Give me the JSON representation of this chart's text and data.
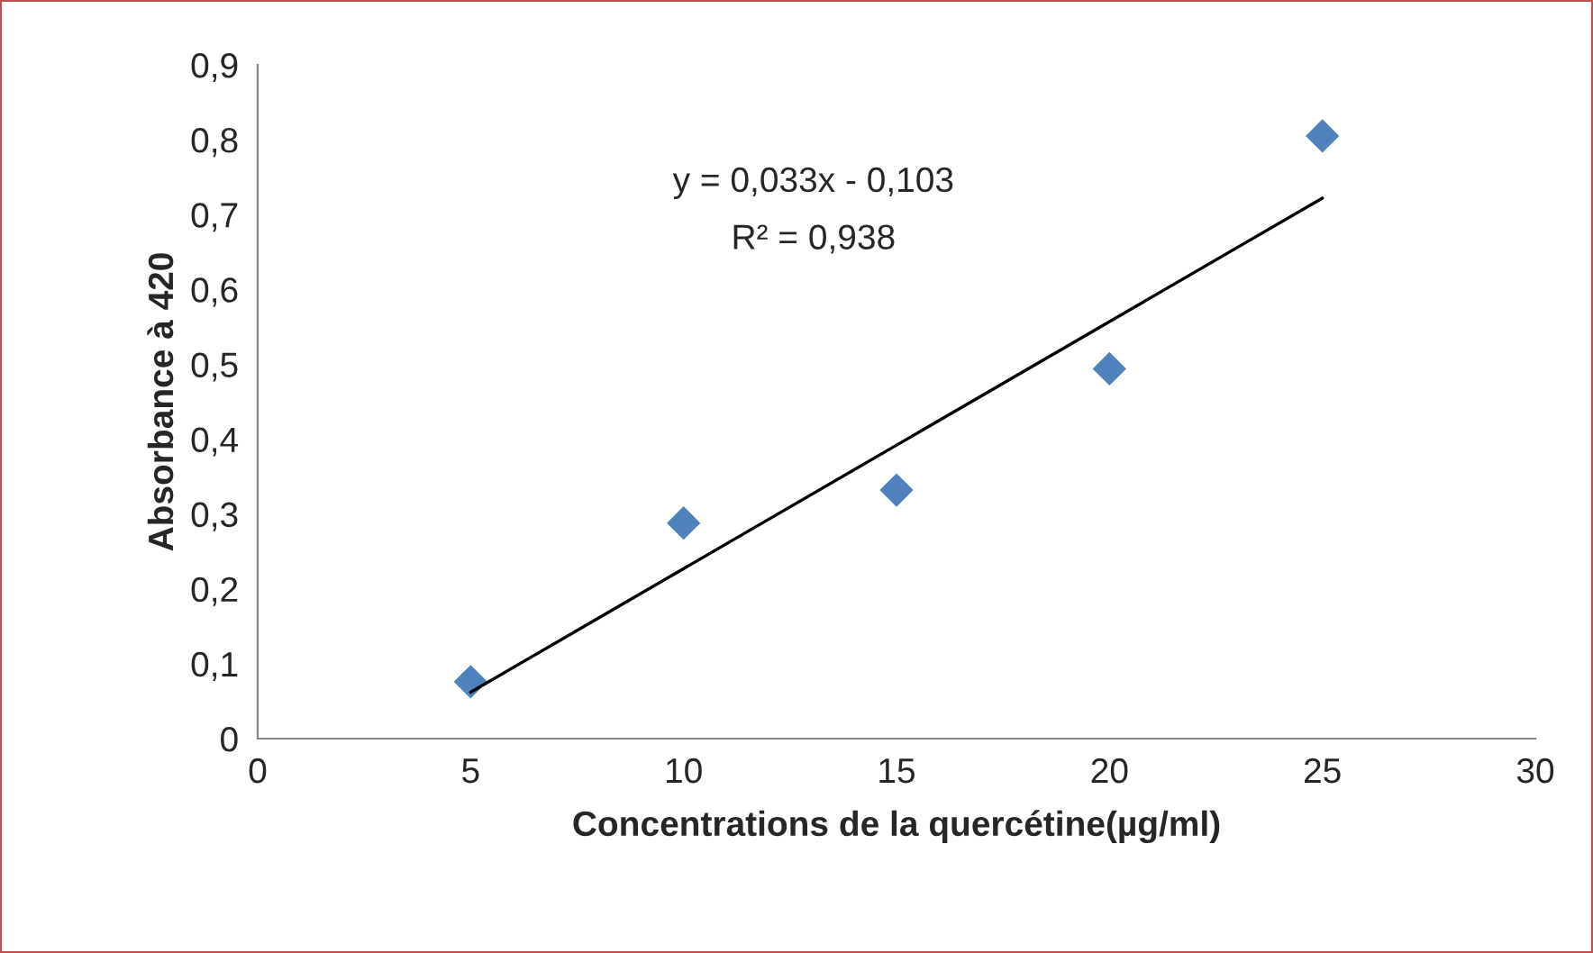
{
  "chart_data": {
    "type": "scatter",
    "xlabel": "Concentrations de la quercétine(µg/ml)",
    "ylabel": "Absorbance à 420",
    "x": [
      5,
      10,
      15,
      20,
      25
    ],
    "series": [
      {
        "color": "#4f81bd",
        "marker": "diamond",
        "values": [
          0.076,
          0.288,
          0.332,
          0.494,
          0.805
        ]
      },
      {
        "type": "line",
        "color": "#000000",
        "marker": "none",
        "x": [
          5,
          25
        ],
        "values": [
          0.062,
          0.722
        ]
      }
    ],
    "annotations": [
      "y = 0,033x - 0,103",
      "R² = 0,938"
    ],
    "xlim": [
      0,
      30
    ],
    "xticks": [
      0,
      5,
      10,
      15,
      20,
      25,
      30
    ],
    "ylim": [
      0,
      0.9
    ],
    "yticks": [
      {
        "value": 0,
        "label": "0"
      },
      {
        "value": 0.1,
        "label": "0,1"
      },
      {
        "value": 0.2,
        "label": "0,2"
      },
      {
        "value": 0.3,
        "label": "0,3"
      },
      {
        "value": 0.4,
        "label": "0,4"
      },
      {
        "value": 0.5,
        "label": "0,5"
      },
      {
        "value": 0.6,
        "label": "0,6"
      },
      {
        "value": 0.7,
        "label": "0,7"
      },
      {
        "value": 0.8,
        "label": "0,8"
      },
      {
        "value": 0.9,
        "label": "0,9"
      }
    ],
    "grid": false,
    "legend": false
  }
}
